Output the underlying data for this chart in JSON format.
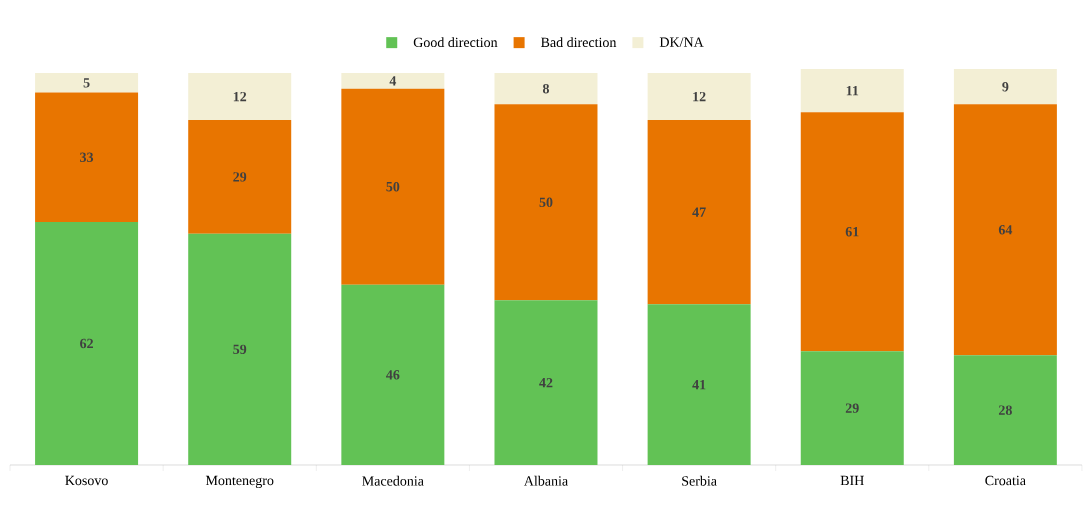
{
  "chart_data": {
    "type": "bar",
    "stacked": true,
    "data_labels": true,
    "legend": "top",
    "categories": [
      "Kosovo",
      "Montenegro",
      "Macedonia",
      "Albania",
      "Serbia",
      "BIH",
      "Croatia"
    ],
    "series": [
      {
        "name": "Good direction",
        "color": "#62c255",
        "values": [
          62,
          59,
          46,
          42,
          41,
          29,
          28
        ]
      },
      {
        "name": "Bad direction",
        "color": "#e87500",
        "values": [
          33,
          29,
          50,
          50,
          47,
          61,
          64
        ]
      },
      {
        "name": "DK/NA",
        "color": "#f3efd5",
        "values": [
          5,
          12,
          4,
          8,
          12,
          11,
          9
        ]
      }
    ]
  }
}
